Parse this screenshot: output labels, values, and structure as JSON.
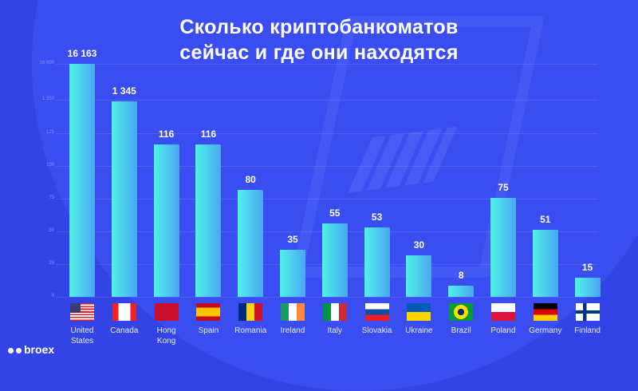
{
  "title_line1": "Сколько криптобанкоматов",
  "title_line2": "сейчас и где они находятся",
  "logo_text": "broex",
  "y_ticks": [
    "0",
    "25",
    "50",
    "75",
    "100",
    "125",
    "1 350",
    "16 000"
  ],
  "countries": [
    {
      "name1": "United",
      "name2": "States",
      "value": "16 163",
      "flag": "us"
    },
    {
      "name1": "Canada",
      "name2": "",
      "value": "1 345",
      "flag": "ca"
    },
    {
      "name1": "Hong",
      "name2": "Kong",
      "value": "116",
      "flag": "hk"
    },
    {
      "name1": "Spain",
      "name2": "",
      "value": "116",
      "flag": "es"
    },
    {
      "name1": "Romania",
      "name2": "",
      "value": "80",
      "flag": "ro"
    },
    {
      "name1": "Ireland",
      "name2": "",
      "value": "35",
      "flag": "ie"
    },
    {
      "name1": "Italy",
      "name2": "",
      "value": "55",
      "flag": "it"
    },
    {
      "name1": "Slovakia",
      "name2": "",
      "value": "53",
      "flag": "sk"
    },
    {
      "name1": "Ukraine",
      "name2": "",
      "value": "30",
      "flag": "ua"
    },
    {
      "name1": "Brazil",
      "name2": "",
      "value": "8",
      "flag": "br"
    },
    {
      "name1": "Poland",
      "name2": "",
      "value": "75",
      "flag": "pl"
    },
    {
      "name1": "Germany",
      "name2": "",
      "value": "51",
      "flag": "de"
    },
    {
      "name1": "Finland",
      "name2": "",
      "value": "15",
      "flag": "fi"
    }
  ],
  "chart_data": {
    "type": "bar",
    "title": "Сколько криптобанкоматов сейчас и где они находятся",
    "categories": [
      "United States",
      "Canada",
      "Hong Kong",
      "Spain",
      "Romania",
      "Ireland",
      "Italy",
      "Slovakia",
      "Ukraine",
      "Brazil",
      "Poland",
      "Germany",
      "Finland"
    ],
    "values": [
      16163,
      1345,
      116,
      116,
      80,
      35,
      55,
      53,
      30,
      8,
      75,
      51,
      15
    ],
    "xlabel": "",
    "ylabel": "",
    "y_tick_labels": [
      "0",
      "25",
      "50",
      "75",
      "100",
      "125",
      "1 350",
      "16 000"
    ],
    "axis_note": "non-linear (broken) y-axis",
    "grid": true
  }
}
